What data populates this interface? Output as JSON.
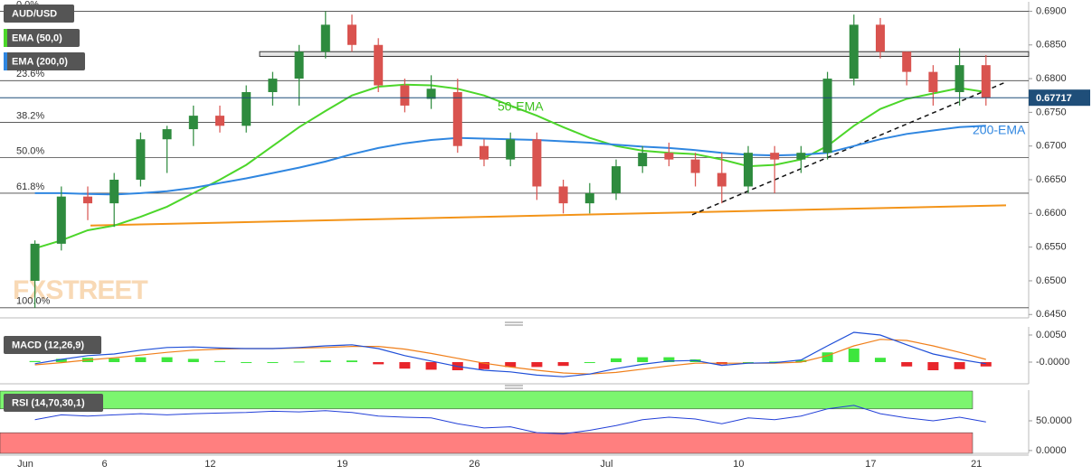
{
  "chart_data": [
    {
      "type": "candlestick",
      "title": "AUD/USD",
      "categories": [
        "Jun",
        null,
        null,
        "6",
        null,
        null,
        null,
        "12",
        null,
        null,
        null,
        null,
        "19",
        null,
        null,
        null,
        null,
        "26",
        null,
        null,
        null,
        null,
        "Jul",
        null,
        null,
        null,
        null,
        "10",
        null,
        null,
        null,
        null,
        "17",
        null,
        null,
        null,
        "21"
      ],
      "open": [
        0.65,
        0.6555,
        0.6625,
        0.6615,
        0.665,
        0.671,
        0.6725,
        0.6745,
        0.673,
        0.678,
        0.68,
        0.684,
        0.688,
        0.685,
        0.679,
        0.677,
        0.678,
        0.67,
        0.668,
        0.671,
        0.664,
        0.6615,
        0.663,
        0.667,
        0.669,
        0.668,
        0.666,
        0.664,
        0.669,
        0.668,
        0.669,
        0.68,
        0.688,
        0.684,
        0.681,
        0.678,
        0.682
      ],
      "high": [
        0.656,
        0.664,
        0.664,
        0.666,
        0.672,
        0.673,
        0.676,
        0.676,
        0.679,
        0.681,
        0.685,
        0.69,
        0.6895,
        0.686,
        0.68,
        0.6805,
        0.68,
        0.671,
        0.672,
        0.672,
        0.665,
        0.6645,
        0.668,
        0.67,
        0.6705,
        0.669,
        0.669,
        0.67,
        0.67,
        0.67,
        0.681,
        0.6895,
        0.689,
        0.684,
        0.682,
        0.6845,
        0.6835
      ],
      "low": [
        0.646,
        0.6545,
        0.659,
        0.658,
        0.664,
        0.666,
        0.67,
        0.672,
        0.672,
        0.676,
        0.676,
        0.683,
        0.684,
        0.678,
        0.675,
        0.6755,
        0.669,
        0.667,
        0.667,
        0.662,
        0.66,
        0.66,
        0.662,
        0.666,
        0.667,
        0.664,
        0.6615,
        0.663,
        0.663,
        0.666,
        0.668,
        0.679,
        0.683,
        0.679,
        0.676,
        0.676,
        0.676
      ],
      "close": [
        0.6555,
        0.6625,
        0.6615,
        0.665,
        0.671,
        0.6725,
        0.6745,
        0.673,
        0.678,
        0.68,
        0.684,
        0.688,
        0.685,
        0.679,
        0.676,
        0.6785,
        0.67,
        0.668,
        0.671,
        0.664,
        0.6615,
        0.663,
        0.667,
        0.669,
        0.668,
        0.666,
        0.664,
        0.669,
        0.668,
        0.669,
        0.68,
        0.688,
        0.684,
        0.681,
        0.678,
        0.682,
        0.67717
      ],
      "up_color": "#2e8b3e",
      "down_color": "#d9534f",
      "series": [
        {
          "name": "EMA (50,0)",
          "color": "#4cd62a",
          "values": [
            0.6548,
            0.656,
            0.6575,
            0.6582,
            0.6595,
            0.661,
            0.663,
            0.665,
            0.6672,
            0.67,
            0.6728,
            0.6752,
            0.6775,
            0.6788,
            0.6791,
            0.679,
            0.6785,
            0.6775,
            0.676,
            0.6745,
            0.6728,
            0.6712,
            0.67,
            0.6693,
            0.669,
            0.6688,
            0.668,
            0.667,
            0.6672,
            0.668,
            0.67,
            0.673,
            0.6755,
            0.677,
            0.6778,
            0.6786,
            0.678
          ]
        },
        {
          "name": "EMA (200,0)",
          "color": "#2f86e0",
          "values": [
            0.663,
            0.663,
            0.6629,
            0.6628,
            0.663,
            0.6633,
            0.6638,
            0.6645,
            0.6652,
            0.666,
            0.6668,
            0.6677,
            0.6688,
            0.6697,
            0.6704,
            0.6709,
            0.6712,
            0.6711,
            0.671,
            0.6709,
            0.6707,
            0.6705,
            0.6702,
            0.6699,
            0.6697,
            0.6694,
            0.669,
            0.6687,
            0.6686,
            0.6687,
            0.669,
            0.67,
            0.671,
            0.6718,
            0.6723,
            0.6728,
            0.673
          ]
        }
      ],
      "ylim": [
        0.6445,
        0.6914
      ],
      "yticks": [
        {
          "value": 0.645,
          "label": "0.6450"
        },
        {
          "value": 0.65,
          "label": "0.6500"
        },
        {
          "value": 0.655,
          "label": "0.6550"
        },
        {
          "value": 0.66,
          "label": "0.6600"
        },
        {
          "value": 0.665,
          "label": "0.6650"
        },
        {
          "value": 0.67,
          "label": "0.6700"
        },
        {
          "value": 0.675,
          "label": "0.6750"
        },
        {
          "value": 0.68,
          "label": "0.6800"
        },
        {
          "value": 0.685,
          "label": "0.6850"
        },
        {
          "value": 0.69,
          "label": "0.6900"
        }
      ],
      "fib_levels": [
        {
          "label": "0.0%",
          "value": 0.69
        },
        {
          "label": "23.6%",
          "value": 0.6797
        },
        {
          "label": "38.2%",
          "value": 0.6735
        },
        {
          "label": "50.0%",
          "value": 0.6683
        },
        {
          "label": "61.8%",
          "value": 0.663
        },
        {
          "label": "100.0%",
          "value": 0.646
        }
      ],
      "resistance_zone": [
        0.6833,
        0.684
      ],
      "support_line": [
        0.6582,
        0.6612
      ],
      "trend_line": [
        0.6598,
        0.6795
      ],
      "last_price": 0.67717,
      "annotations": [
        "50-EMA",
        "200-EMA"
      ],
      "watermark": "FXSTREET"
    },
    {
      "type": "macd",
      "title": "MACD (12,26,9)",
      "macd": [
        -0.0003,
        0.0005,
        0.0012,
        0.0015,
        0.0022,
        0.0027,
        0.0028,
        0.0026,
        0.0025,
        0.0025,
        0.0027,
        0.003,
        0.0032,
        0.0025,
        0.0012,
        0.0002,
        -0.0008,
        -0.0015,
        -0.0018,
        -0.0024,
        -0.0027,
        -0.0022,
        -0.0012,
        -0.0004,
        0.0002,
        0.0003,
        -0.0006,
        -0.0002,
        -0.0001,
        0.0004,
        0.003,
        0.0055,
        0.005,
        0.0032,
        0.0015,
        0.0005,
        -0.0003
      ],
      "signal": [
        -0.0005,
        -0.0001,
        0.0004,
        0.0008,
        0.0013,
        0.0018,
        0.0022,
        0.0024,
        0.0025,
        0.0025,
        0.0026,
        0.0027,
        0.0029,
        0.0029,
        0.0024,
        0.0016,
        0.0007,
        -0.0002,
        -0.0009,
        -0.0015,
        -0.002,
        -0.0022,
        -0.0019,
        -0.0013,
        -0.0007,
        -0.0002,
        -0.0002,
        -0.0002,
        -0.0002,
        0.0,
        0.0012,
        0.003,
        0.0042,
        0.004,
        0.003,
        0.0018,
        0.0005
      ],
      "histogram": [
        0.0002,
        0.0006,
        0.0008,
        0.0007,
        0.0009,
        0.0009,
        0.0006,
        0.0002,
        0.0,
        0.0,
        0.0001,
        0.0003,
        0.0003,
        -0.0004,
        -0.0012,
        -0.0014,
        -0.0015,
        -0.0013,
        -0.0009,
        -0.0009,
        -0.0007,
        0.0,
        0.0007,
        0.0009,
        0.0009,
        0.0005,
        -0.0004,
        0.0,
        0.0001,
        0.0004,
        0.0018,
        0.0025,
        0.0008,
        -0.0008,
        -0.0015,
        -0.0013,
        -0.0008
      ],
      "macd_color": "#1f4fd8",
      "signal_color": "#f07f1a",
      "up_color": "#3ee63e",
      "down_color": "#e8252b",
      "ylim": [
        -0.004,
        0.0065
      ],
      "yticks": [
        {
          "value": 0.005,
          "label": "0.0050"
        },
        {
          "value": 0,
          "label": "-0.0000"
        }
      ]
    },
    {
      "type": "rsi",
      "title": "RSI (14,70,30,1)",
      "values": [
        52,
        60,
        58,
        60,
        62,
        60,
        62,
        63,
        64,
        66,
        65,
        67,
        64,
        58,
        56,
        55,
        45,
        38,
        40,
        30,
        28,
        34,
        42,
        52,
        56,
        53,
        45,
        55,
        52,
        58,
        70,
        76,
        62,
        55,
        50,
        56,
        48
      ],
      "color": "#2340d8",
      "overbought": 70,
      "oversold": 30,
      "overbought_color": "#7cf56f",
      "oversold_color": "#ff7f7f",
      "ylim": [
        -4.7,
        101.6
      ],
      "yticks": [
        {
          "value": 50,
          "label": "50.0000"
        },
        {
          "value": 0,
          "label": "0.0000"
        }
      ]
    }
  ]
}
